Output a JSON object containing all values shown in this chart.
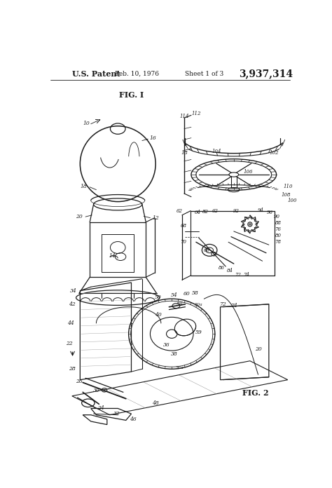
{
  "bg_color": "#ffffff",
  "line_color": "#1a1a1a",
  "patent_left": "U.S. Patent",
  "patent_date": "Feb. 10, 1976",
  "patent_sheet": "Sheet 1 of 3",
  "patent_num": "3,937,314",
  "fig1_label": "FIG. I",
  "fig2_label": "FIG. 2",
  "fig_width": 4.74,
  "fig_height": 6.96,
  "dpi": 100
}
